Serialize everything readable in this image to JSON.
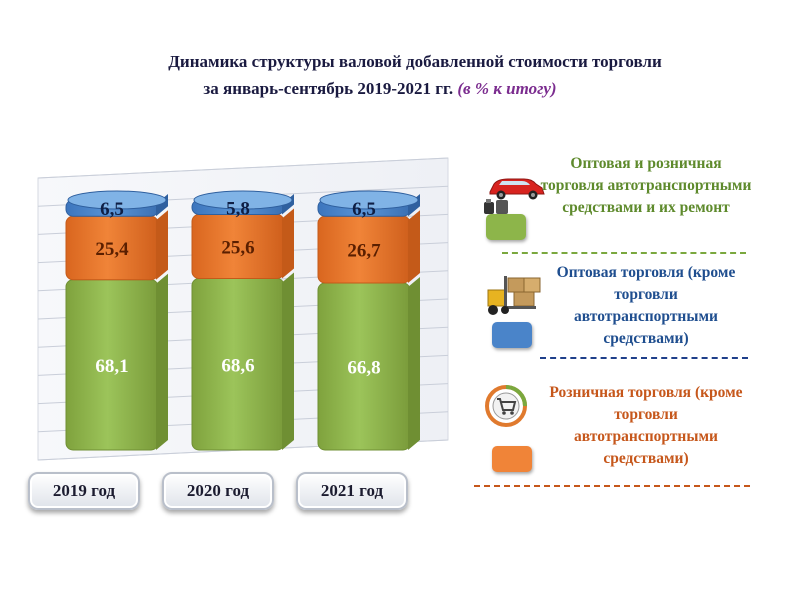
{
  "title": {
    "line1": "Динамика структуры  валовой добавленной стоимости торговли",
    "line2": "за январь-сентябрь 2019-2021 гг. ",
    "unit": "(в % к итогу)"
  },
  "colors": {
    "wholesale": "#4a84c9",
    "retail": "#e8762b",
    "auto": "#8db54a",
    "auto_text": "#5e8a2c",
    "wholesale_text": "#1f4e8f",
    "retail_text": "#c6571b"
  },
  "legend": {
    "auto": "Оптовая и розничная торговля автотранспортными средствами и их ремонт",
    "wholesale": "Оптовая торговля (кроме торговли автотранспортными средствами)",
    "retail": "Розничная торговля (кроме торговли автотранспортными средствами)"
  },
  "chart_data": {
    "type": "bar",
    "stacked": true,
    "categories": [
      "2019 год",
      "2020 год",
      "2021 год"
    ],
    "series": [
      {
        "name": "Оптовая и розничная торговля автотранспортными средствами и их ремонт",
        "values": [
          68.1,
          68.6,
          66.8
        ],
        "labels": [
          "68,1",
          "68,6",
          "66,8"
        ]
      },
      {
        "name": "Розничная торговля (кроме торговли автотранспортными средствами)",
        "values": [
          25.4,
          25.6,
          26.7
        ],
        "labels": [
          "25,4",
          "25,6",
          "26,7"
        ]
      },
      {
        "name": "Оптовая торговля (кроме торговли автотранспортными средствами)",
        "values": [
          6.5,
          5.8,
          6.5
        ],
        "labels": [
          "6,5",
          "5,8",
          "6,5"
        ]
      }
    ],
    "ylim": [
      0,
      100
    ],
    "grid": true,
    "legend_position": "right"
  }
}
